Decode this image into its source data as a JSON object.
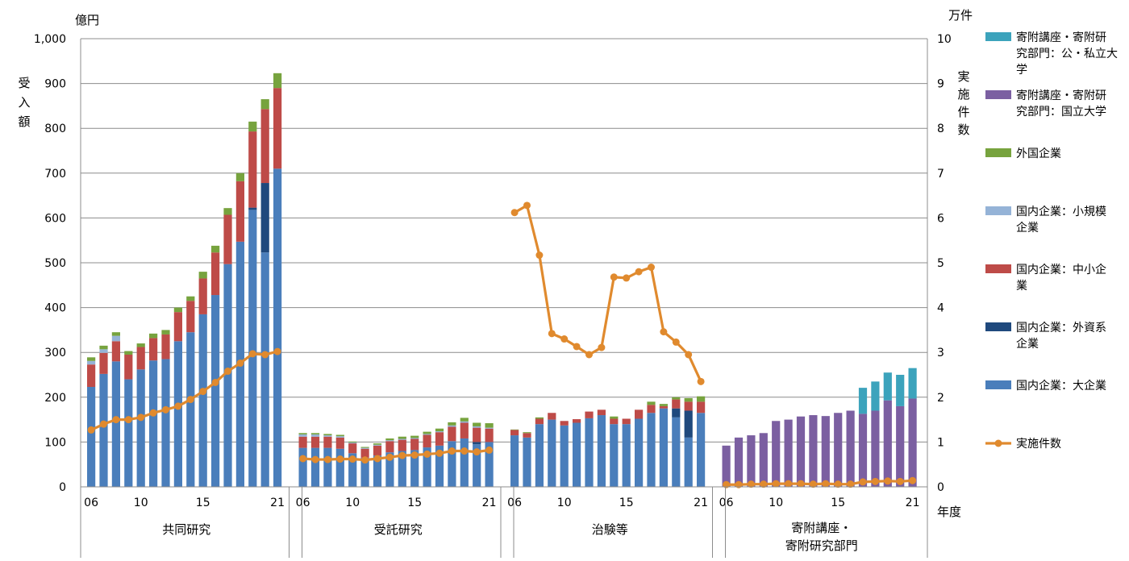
{
  "chart_data": {
    "type": "bar",
    "left_unit": "億円",
    "left_label": "受入額",
    "right_unit": "万件",
    "right_label": "実施件数",
    "x_unit": "年度",
    "y_ticks": [
      "0",
      "100",
      "200",
      "300",
      "400",
      "500",
      "600",
      "700",
      "800",
      "900",
      "1,000"
    ],
    "y2_ticks": [
      "0",
      "1",
      "2",
      "3",
      "4",
      "5",
      "6",
      "7",
      "8",
      "9",
      "10"
    ],
    "ylim": [
      0,
      1000
    ],
    "y2lim": [
      0,
      10
    ],
    "grid": true,
    "legend_position": "right",
    "colors": {
      "large": "#4A7EBB",
      "foreign_capital": "#1F497D",
      "sme": "#BE4B48",
      "small": "#95B3D7",
      "foreign": "#77A33E",
      "donated_national": "#7B5FA1",
      "donated_public_private": "#3CA3BC",
      "count": "#E08A2E"
    },
    "legend": [
      {
        "key": "donated_public_private",
        "label": [
          "寄附講座・寄附研",
          "究部門：公・私立大",
          "学"
        ]
      },
      {
        "key": "donated_national",
        "label": [
          "寄附講座・寄附研",
          "究部門：国立大学"
        ]
      },
      {
        "key": "foreign",
        "label": [
          "外国企業"
        ]
      },
      {
        "key": "small",
        "label": [
          "国内企業：小規模",
          "企業"
        ]
      },
      {
        "key": "sme",
        "label": [
          "国内企業：中小企",
          "業"
        ]
      },
      {
        "key": "foreign_capital",
        "label": [
          "国内企業：外資系",
          "企業"
        ]
      },
      {
        "key": "large",
        "label": [
          "国内企業：大企業"
        ]
      },
      {
        "key": "count",
        "label": [
          "実施件数"
        ],
        "kind": "line"
      }
    ],
    "years": [
      "06",
      "07",
      "08",
      "09",
      "10",
      "11",
      "12",
      "13",
      "14",
      "15",
      "16",
      "17",
      "18",
      "19",
      "20",
      "21"
    ],
    "tick_years": [
      "06",
      "10",
      "15",
      "21"
    ],
    "groups": [
      {
        "name": "共同研究",
        "stack_keys": [
          "large",
          "foreign_capital",
          "sme",
          "small",
          "foreign"
        ],
        "series": {
          "large": [
            223,
            252,
            280,
            240,
            262,
            282,
            285,
            325,
            345,
            385,
            428,
            497,
            547,
            618,
            523,
            710
          ],
          "foreign_capital": [
            0,
            0,
            0,
            0,
            0,
            0,
            0,
            0,
            0,
            0,
            0,
            0,
            0,
            5,
            155,
            0
          ],
          "sme": [
            50,
            47,
            45,
            55,
            50,
            50,
            55,
            65,
            70,
            80,
            95,
            110,
            135,
            170,
            165,
            180
          ],
          "small": [
            8,
            8,
            12,
            0,
            0,
            0,
            0,
            0,
            0,
            0,
            0,
            0,
            0,
            0,
            0,
            0
          ],
          "foreign": [
            8,
            8,
            8,
            8,
            8,
            10,
            10,
            10,
            10,
            15,
            15,
            15,
            18,
            22,
            22,
            33
          ]
        },
        "count": [
          1.27,
          1.4,
          1.5,
          1.5,
          1.55,
          1.65,
          1.72,
          1.8,
          1.95,
          2.13,
          2.33,
          2.58,
          2.76,
          2.97,
          2.95,
          3.02
        ]
      },
      {
        "name": "受託研究",
        "stack_keys": [
          "large",
          "foreign_capital",
          "sme",
          "small",
          "foreign"
        ],
        "series": {
          "large": [
            87,
            87,
            87,
            85,
            75,
            65,
            70,
            77,
            80,
            82,
            88,
            92,
            102,
            108,
            95,
            100
          ],
          "foreign_capital": [
            0,
            0,
            0,
            0,
            0,
            0,
            0,
            0,
            0,
            0,
            0,
            0,
            0,
            0,
            5,
            0
          ],
          "sme": [
            25,
            25,
            25,
            25,
            22,
            20,
            22,
            25,
            25,
            25,
            28,
            30,
            32,
            35,
            32,
            30
          ],
          "small": [
            5,
            5,
            3,
            3,
            2,
            2,
            2,
            2,
            2,
            2,
            2,
            2,
            3,
            3,
            3,
            2
          ],
          "foreign": [
            3,
            3,
            3,
            3,
            2,
            2,
            3,
            4,
            5,
            5,
            5,
            6,
            7,
            8,
            8,
            10
          ]
        },
        "count": [
          0.63,
          0.61,
          0.61,
          0.62,
          0.62,
          0.6,
          0.63,
          0.66,
          0.7,
          0.71,
          0.73,
          0.75,
          0.8,
          0.8,
          0.78,
          0.82
        ]
      },
      {
        "name": "治験等",
        "stack_keys": [
          "large",
          "foreign_capital",
          "sme",
          "small",
          "foreign"
        ],
        "series": {
          "large": [
            115,
            110,
            140,
            150,
            137,
            143,
            153,
            160,
            140,
            140,
            152,
            165,
            175,
            155,
            110,
            165
          ],
          "foreign_capital": [
            0,
            0,
            0,
            0,
            0,
            0,
            0,
            0,
            0,
            0,
            0,
            0,
            0,
            20,
            60,
            0
          ],
          "sme": [
            12,
            10,
            12,
            15,
            10,
            8,
            15,
            12,
            12,
            12,
            20,
            18,
            5,
            20,
            20,
            25
          ],
          "small": [
            0,
            0,
            0,
            0,
            0,
            0,
            0,
            0,
            0,
            0,
            0,
            0,
            0,
            0,
            0,
            0
          ],
          "foreign": [
            1,
            2,
            3,
            0,
            0,
            0,
            0,
            0,
            5,
            0,
            0,
            7,
            5,
            5,
            8,
            12
          ]
        },
        "count": [
          6.12,
          6.28,
          5.17,
          3.42,
          3.3,
          3.13,
          2.95,
          3.11,
          4.68,
          4.66,
          4.8,
          4.9,
          3.46,
          3.23,
          2.95,
          2.35
        ]
      },
      {
        "name": "寄附講座・寄附研究部門",
        "name_lines": [
          "寄附講座・",
          "寄附研究部門"
        ],
        "stack_keys": [
          "donated_national",
          "donated_public_private"
        ],
        "series": {
          "donated_national": [
            92,
            110,
            115,
            120,
            147,
            150,
            157,
            160,
            158,
            165,
            170,
            163,
            170,
            193,
            180,
            197
          ],
          "donated_public_private": [
            0,
            0,
            0,
            0,
            0,
            0,
            0,
            0,
            0,
            0,
            0,
            58,
            65,
            62,
            70,
            68
          ]
        },
        "count": [
          0.05,
          0.05,
          0.06,
          0.06,
          0.07,
          0.07,
          0.07,
          0.06,
          0.07,
          0.06,
          0.06,
          0.11,
          0.12,
          0.13,
          0.12,
          0.14
        ]
      }
    ]
  }
}
